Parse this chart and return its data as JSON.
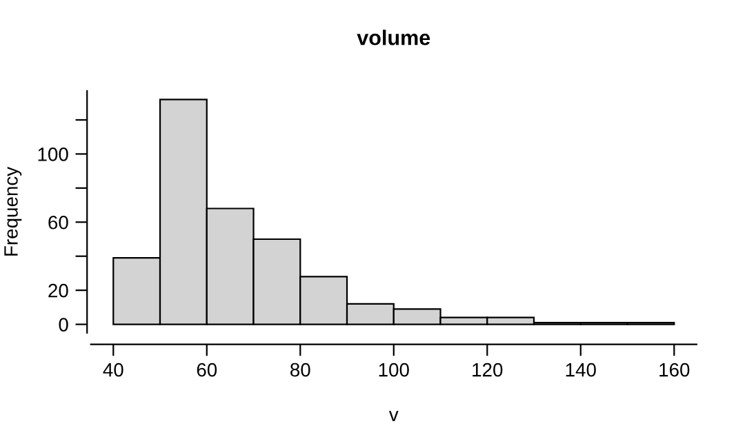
{
  "chart_data": {
    "type": "histogram",
    "title": "volume",
    "xlabel": "v",
    "ylabel": "Frequency",
    "bins": [
      40,
      50,
      60,
      70,
      80,
      90,
      100,
      110,
      120,
      130,
      140,
      150,
      160
    ],
    "values": [
      39,
      132,
      68,
      50,
      28,
      12,
      9,
      4,
      4,
      1,
      1,
      1
    ],
    "color": "#d3d3d3",
    "xlim": [
      35.2,
      164.8
    ],
    "ylim": [
      -5,
      137
    ],
    "xticks": [
      40,
      60,
      80,
      100,
      120,
      140,
      160
    ],
    "yticks": [
      0,
      20,
      {
        "value": 40,
        "label": null
      },
      60,
      {
        "value": 80,
        "label": null
      },
      100,
      {
        "value": 120,
        "label": null
      }
    ],
    "grid": false
  }
}
